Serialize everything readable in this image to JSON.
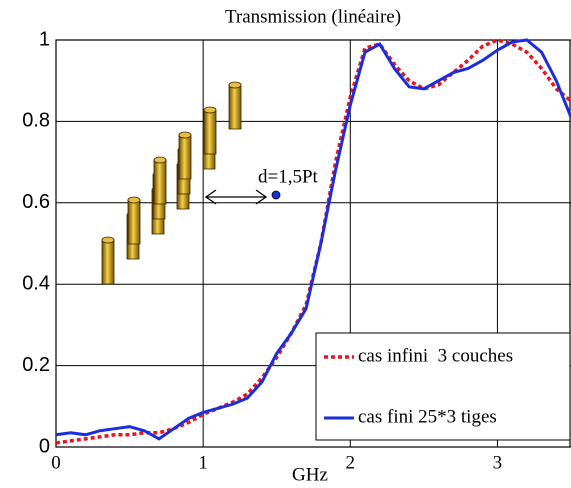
{
  "chart_data": {
    "type": "line",
    "title": "Transmission (linéaire)",
    "x_label": "GHz",
    "x": [
      0,
      0.1,
      0.2,
      0.3,
      0.4,
      0.5,
      0.6,
      0.7,
      0.8,
      0.9,
      1.0,
      1.1,
      1.2,
      1.3,
      1.4,
      1.5,
      1.6,
      1.7,
      1.8,
      1.9,
      2.0,
      2.1,
      2.2,
      2.3,
      2.4,
      2.5,
      2.6,
      2.7,
      2.8,
      2.9,
      3.0,
      3.1,
      3.2,
      3.3,
      3.4,
      3.5
    ],
    "series": [
      {
        "name": "cas infini  3 couches",
        "color": "#e8141e",
        "dash": true,
        "values": [
          0.01,
          0.015,
          0.02,
          0.025,
          0.03,
          0.03,
          0.035,
          0.035,
          0.045,
          0.06,
          0.08,
          0.095,
          0.11,
          0.13,
          0.17,
          0.22,
          0.28,
          0.35,
          0.5,
          0.7,
          0.86,
          0.98,
          0.99,
          0.94,
          0.9,
          0.88,
          0.89,
          0.92,
          0.95,
          0.985,
          1.0,
          0.99,
          0.97,
          0.93,
          0.88,
          0.85
        ]
      },
      {
        "name": "cas fini 25*3 tiges",
        "color": "#1a2ee0",
        "dash": false,
        "values": [
          0.03,
          0.035,
          0.03,
          0.04,
          0.045,
          0.05,
          0.04,
          0.02,
          0.045,
          0.07,
          0.085,
          0.095,
          0.105,
          0.12,
          0.16,
          0.23,
          0.28,
          0.34,
          0.5,
          0.68,
          0.84,
          0.97,
          0.99,
          0.93,
          0.885,
          0.88,
          0.9,
          0.92,
          0.93,
          0.95,
          0.975,
          0.995,
          1.0,
          0.97,
          0.9,
          0.81
        ]
      }
    ],
    "xlim": [
      0,
      3.5
    ],
    "ylim": [
      0,
      1
    ],
    "xticks": [
      0,
      1,
      2,
      3
    ],
    "yticks": [
      0,
      0.2,
      0.4,
      0.6,
      0.8,
      1
    ],
    "grid": true,
    "legend": "lower right",
    "annotations": [
      "d=1,5Pt"
    ]
  }
}
